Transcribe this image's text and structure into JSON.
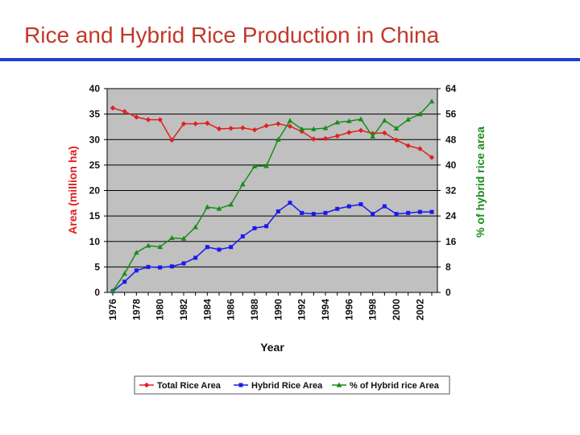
{
  "slide": {
    "title": "Rice and Hybrid Rice Production in China",
    "title_color": "#c0392b",
    "rule_color": "#1f3fd1"
  },
  "chart_data": {
    "type": "line",
    "title": "",
    "xlabel": "Year",
    "ylabel_left": "Area (million ha)",
    "ylabel_right": "% of hybrid rice area",
    "x": [
      1976,
      1977,
      1978,
      1979,
      1980,
      1981,
      1982,
      1983,
      1984,
      1985,
      1986,
      1987,
      1988,
      1989,
      1990,
      1991,
      1992,
      1993,
      1994,
      1995,
      1996,
      1997,
      1998,
      1999,
      2000,
      2001,
      2002,
      2003
    ],
    "x_tick_labels": [
      "1976",
      "1978",
      "1980",
      "1982",
      "1984",
      "1986",
      "1988",
      "1990",
      "1992",
      "1994",
      "1996",
      "1998",
      "2000",
      "2002"
    ],
    "ylim_left": [
      0,
      40
    ],
    "yticks_left": [
      0,
      5,
      10,
      15,
      20,
      25,
      30,
      35,
      40
    ],
    "ylim_right": [
      0,
      64
    ],
    "yticks_right": [
      0,
      8,
      16,
      24,
      32,
      40,
      48,
      56,
      64
    ],
    "grid": "horizontal",
    "plot_background": "#c0c0c0",
    "legend_position": "bottom",
    "series": [
      {
        "name": "Total Rice Area",
        "axis": "left",
        "color": "#e02020",
        "marker": "diamond",
        "values": [
          36.2,
          35.5,
          34.4,
          33.9,
          33.9,
          29.9,
          33.1,
          33.1,
          33.2,
          32.1,
          32.2,
          32.3,
          31.9,
          32.7,
          33.1,
          32.6,
          31.6,
          30.1,
          30.2,
          30.7,
          31.4,
          31.8,
          31.2,
          31.3,
          29.9,
          28.8,
          28.2,
          26.5
        ]
      },
      {
        "name": "Hybrid Rice Area",
        "axis": "left",
        "color": "#1a1aee",
        "marker": "square",
        "values": [
          0.2,
          2.1,
          4.3,
          5.0,
          4.9,
          5.1,
          5.7,
          6.8,
          8.9,
          8.4,
          8.9,
          11.0,
          12.6,
          13.0,
          15.9,
          17.6,
          15.6,
          15.4,
          15.6,
          16.4,
          16.9,
          17.3,
          15.4,
          16.9,
          15.4,
          15.6,
          15.8,
          15.8
        ]
      },
      {
        "name": "% of Hybrid rice Area",
        "axis": "right",
        "color": "#1a8c1a",
        "marker": "triangle",
        "values": [
          0.5,
          5.9,
          12.5,
          14.7,
          14.3,
          17.1,
          16.9,
          20.5,
          26.8,
          26.3,
          27.6,
          34.0,
          39.6,
          39.7,
          48.0,
          53.9,
          51.3,
          51.3,
          51.6,
          53.4,
          53.8,
          54.4,
          49.0,
          54.0,
          51.5,
          54.3,
          56.0,
          60.0
        ]
      }
    ]
  }
}
